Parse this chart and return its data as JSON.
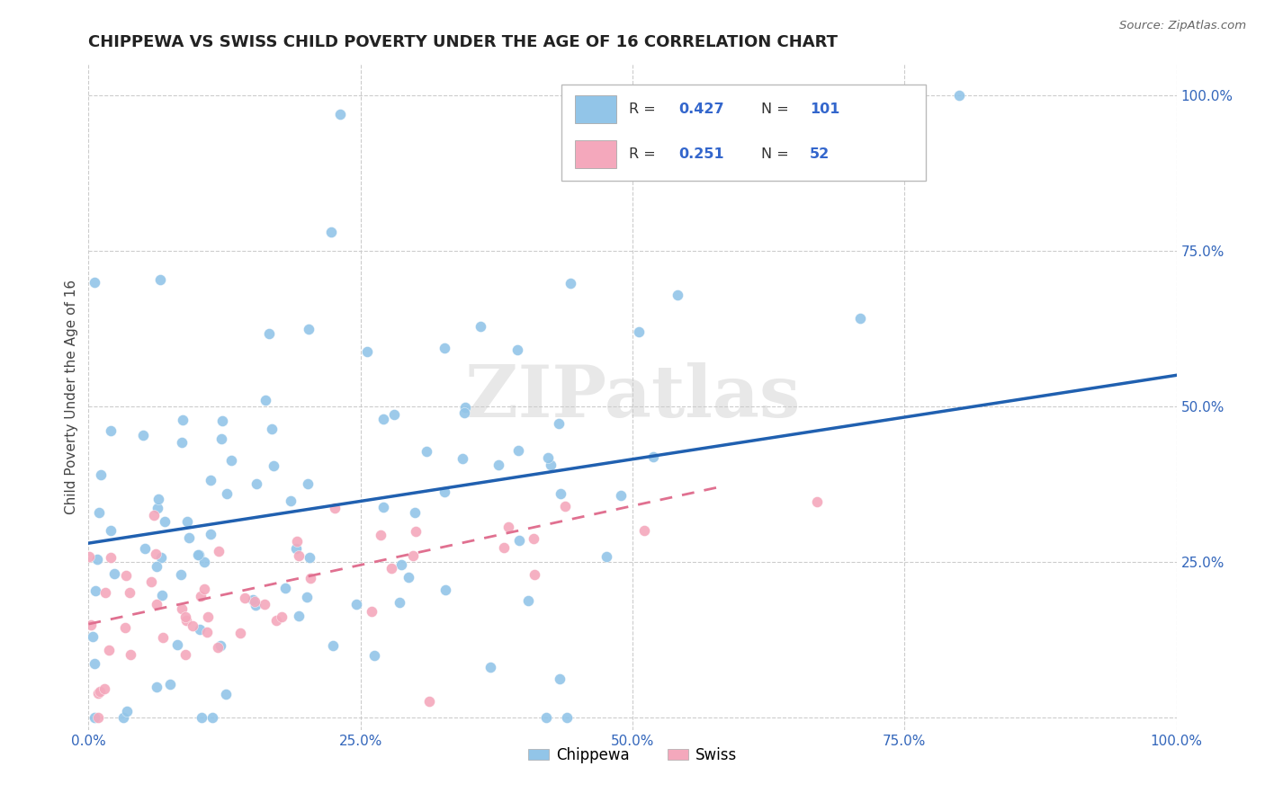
{
  "title": "CHIPPEWA VS SWISS CHILD POVERTY UNDER THE AGE OF 16 CORRELATION CHART",
  "source": "Source: ZipAtlas.com",
  "ylabel": "Child Poverty Under the Age of 16",
  "xlim": [
    0.0,
    1.0
  ],
  "ylim": [
    -0.02,
    1.05
  ],
  "xticks": [
    0.0,
    0.25,
    0.5,
    0.75,
    1.0
  ],
  "xticklabels": [
    "0.0%",
    "25.0%",
    "50.0%",
    "75.0%",
    "100.0%"
  ],
  "yticks_right": [
    0.0,
    0.25,
    0.5,
    0.75,
    1.0
  ],
  "yticklabels_right": [
    "",
    "25.0%",
    "50.0%",
    "75.0%",
    "100.0%"
  ],
  "chippewa_color": "#92C5E8",
  "swiss_color": "#F4A8BC",
  "chippewa_line_color": "#2060B0",
  "swiss_line_color": "#E07090",
  "legend_R_chippewa": "0.427",
  "legend_N_chippewa": "101",
  "legend_R_swiss": "0.251",
  "legend_N_swiss": "52",
  "watermark": "ZIPatlas",
  "background_color": "#ffffff",
  "grid_color": "#cccccc",
  "title_fontsize": 13,
  "chip_intercept": 0.28,
  "chip_slope": 0.27,
  "swiss_intercept": 0.15,
  "swiss_slope": 0.38,
  "swiss_line_xmax": 0.58
}
